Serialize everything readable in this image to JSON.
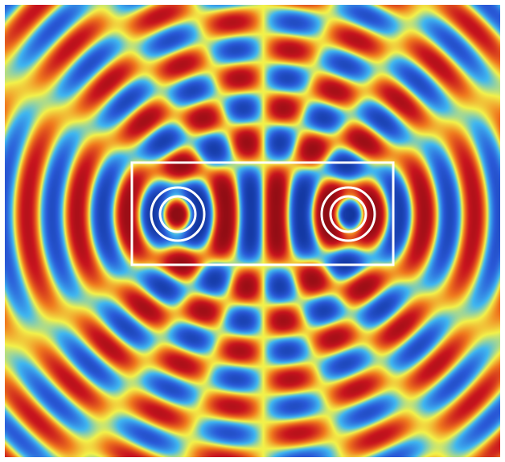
{
  "figure": {
    "kind": "wave interference field map",
    "colormap": [
      "#0a2a8c",
      "#2a5ad8",
      "#3fb6f0",
      "#f2f24a",
      "#f07a1e",
      "#c8141e",
      "#7a0a10"
    ],
    "overlay_color": "#ffffff",
    "sources": 2,
    "source_shape": "double-ring",
    "enclosure_shape": "rectangle"
  }
}
